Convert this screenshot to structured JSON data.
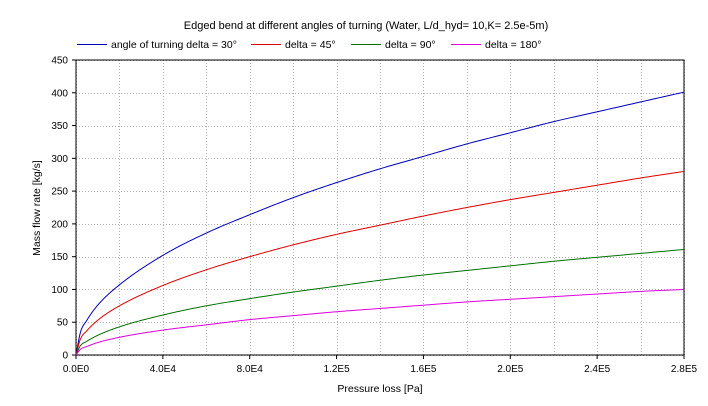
{
  "chart_data": {
    "type": "line",
    "title": "Edged bend at different angles of turning (Water, L/d_hyd= 10,K= 2.5e-5m)",
    "xlabel": "Pressure loss [Pa]",
    "ylabel": "Mass flow rate [kg/s]",
    "xlim": [
      0,
      280000
    ],
    "ylim": [
      0,
      450
    ],
    "grid": true,
    "legend_position": "top",
    "x_ticks": [
      {
        "value": 0,
        "label": "0.0E0"
      },
      {
        "value": 40000,
        "label": "4.0E4"
      },
      {
        "value": 80000,
        "label": "8.0E4"
      },
      {
        "value": 120000,
        "label": "1.2E5"
      },
      {
        "value": 160000,
        "label": "1.6E5"
      },
      {
        "value": 200000,
        "label": "2.0E5"
      },
      {
        "value": 240000,
        "label": "2.4E5"
      },
      {
        "value": 280000,
        "label": "2.8E5"
      }
    ],
    "x_minor_grid_step": 20000,
    "y_ticks": [
      {
        "value": 0,
        "label": "0"
      },
      {
        "value": 50,
        "label": "50"
      },
      {
        "value": 100,
        "label": "100"
      },
      {
        "value": 150,
        "label": "150"
      },
      {
        "value": 200,
        "label": "200"
      },
      {
        "value": 250,
        "label": "250"
      },
      {
        "value": 300,
        "label": "300"
      },
      {
        "value": 350,
        "label": "350"
      },
      {
        "value": 400,
        "label": "400"
      },
      {
        "value": 450,
        "label": "450"
      }
    ],
    "x": [
      0,
      2000,
      5000,
      10000,
      20000,
      40000,
      60000,
      80000,
      100000,
      120000,
      140000,
      160000,
      180000,
      200000,
      220000,
      240000,
      260000,
      280000
    ],
    "series": [
      {
        "name": "angle of turning delta = 30°",
        "color": "#0000c0",
        "values": [
          0,
          34,
          53,
          76,
          107,
          152,
          186,
          214,
          240,
          263,
          284,
          303,
          322,
          339,
          356,
          371,
          386,
          401
        ]
      },
      {
        "name": "delta = 45°",
        "color": "#e00000",
        "values": [
          0,
          24,
          37,
          53,
          75,
          106,
          130,
          150,
          168,
          184,
          198,
          212,
          225,
          237,
          248,
          259,
          270,
          280
        ]
      },
      {
        "name": "delta = 90°",
        "color": "#007000",
        "values": [
          0,
          14,
          21,
          30,
          43,
          61,
          75,
          86,
          96,
          105,
          114,
          122,
          129,
          136,
          143,
          149,
          155,
          161
        ]
      },
      {
        "name": "delta = 180°",
        "color": "#e000e0",
        "values": [
          0,
          8.5,
          13,
          19,
          27,
          38,
          46,
          54,
          60,
          66,
          71,
          76,
          81,
          85,
          89,
          93,
          97,
          100
        ]
      }
    ]
  }
}
